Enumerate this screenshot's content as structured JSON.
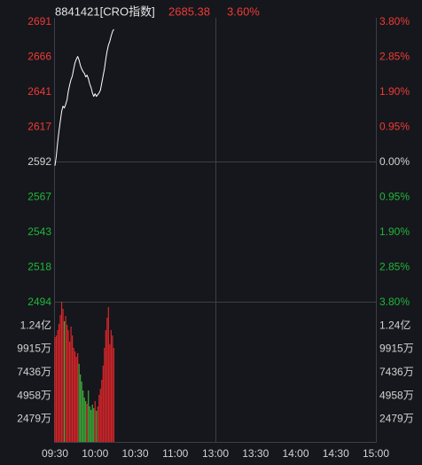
{
  "header": {
    "title": "8841421[CRO指数]",
    "last_price": "2685.38",
    "change_percent": "3.60%"
  },
  "colors": {
    "background": "#15171c",
    "grid": "#3c3f46",
    "title_text": "#e4e4e4",
    "up_text": "#f03a35",
    "down_text": "#21b53a",
    "neutral_text": "#d2d2d2",
    "price_line": "#ffffff",
    "up_bar": "#d8262a",
    "down_bar": "#3fa93a"
  },
  "chart_data": {
    "type": "line",
    "x": [
      "09:30",
      "09:31",
      "09:32",
      "09:33",
      "09:34",
      "09:35",
      "09:36",
      "09:37",
      "09:38",
      "09:39",
      "09:40",
      "09:41",
      "09:42",
      "09:43",
      "09:44",
      "09:45",
      "09:46",
      "09:47",
      "09:48",
      "09:49",
      "09:50",
      "09:51",
      "09:52",
      "09:53",
      "09:54",
      "09:55",
      "09:56",
      "09:57",
      "09:58",
      "09:59",
      "10:00",
      "10:01",
      "10:02",
      "10:03",
      "10:04",
      "10:05",
      "10:06",
      "10:07",
      "10:08",
      "10:09",
      "10:10",
      "10:11",
      "10:12",
      "10:13",
      "10:14"
    ],
    "series": [
      {
        "values": [
          2589.61,
          2596.46,
          2605.82,
          2613.92,
          2620.78,
          2627.63,
          2631.37,
          2630.13,
          2632.62,
          2635.74,
          2641.97,
          2646.34,
          2650.08,
          2652.57,
          2657.56,
          2661.92,
          2664.42,
          2666.29,
          2663.79,
          2660.05,
          2657.56,
          2655.69,
          2654.44,
          2651.95,
          2653.19,
          2650.7,
          2646.96,
          2644.46,
          2640.73,
          2638.23,
          2640.1,
          2638.23,
          2639.48,
          2640.73,
          2642.6,
          2647.58,
          2652.57,
          2657.56,
          2664.42,
          2670.03,
          2674.39,
          2676.88,
          2680.62,
          2683.74,
          2685.38
        ]
      }
    ],
    "volume": [
      11108,
      11297,
      11862,
      12521,
      13462,
      14874,
      14121,
      12803,
      13368,
      12426,
      11862,
      10638,
      12238,
      11297,
      9979,
      9602,
      9037,
      9414,
      8284,
      7155,
      6402,
      5460,
      4707,
      4330,
      4048,
      5460,
      3766,
      3389,
      3954,
      3577,
      4330,
      3295,
      3766,
      4989,
      5648,
      6590,
      8096,
      9979,
      11862,
      13180,
      14309,
      10355,
      11862,
      11297,
      9979
    ],
    "ylim": [
      2494,
      2691
    ],
    "volume_ylim": [
      0,
      14874
    ],
    "xlim": [
      "09:30",
      "15:00"
    ],
    "y_ticks_left": [
      "2691",
      "2666",
      "2641",
      "2617",
      "2592",
      "2567",
      "2543",
      "2518",
      "2494"
    ],
    "y_ticks_right": [
      "3.80%",
      "2.85%",
      "1.90%",
      "0.95%",
      "0.00%",
      "0.95%",
      "1.90%",
      "2.85%",
      "3.80%"
    ],
    "volume_ticks_left": [
      "1.24亿",
      "9915万",
      "7436万",
      "4958万",
      "2479万"
    ],
    "volume_ticks_right": [
      "1.24亿",
      "9915万",
      "7436万",
      "4958万",
      "2479万"
    ],
    "x_ticks": [
      "09:30",
      "10:00",
      "10:30",
      "11:00",
      "13:00",
      "13:30",
      "14:00",
      "14:30",
      "15:00"
    ],
    "grid": true
  }
}
